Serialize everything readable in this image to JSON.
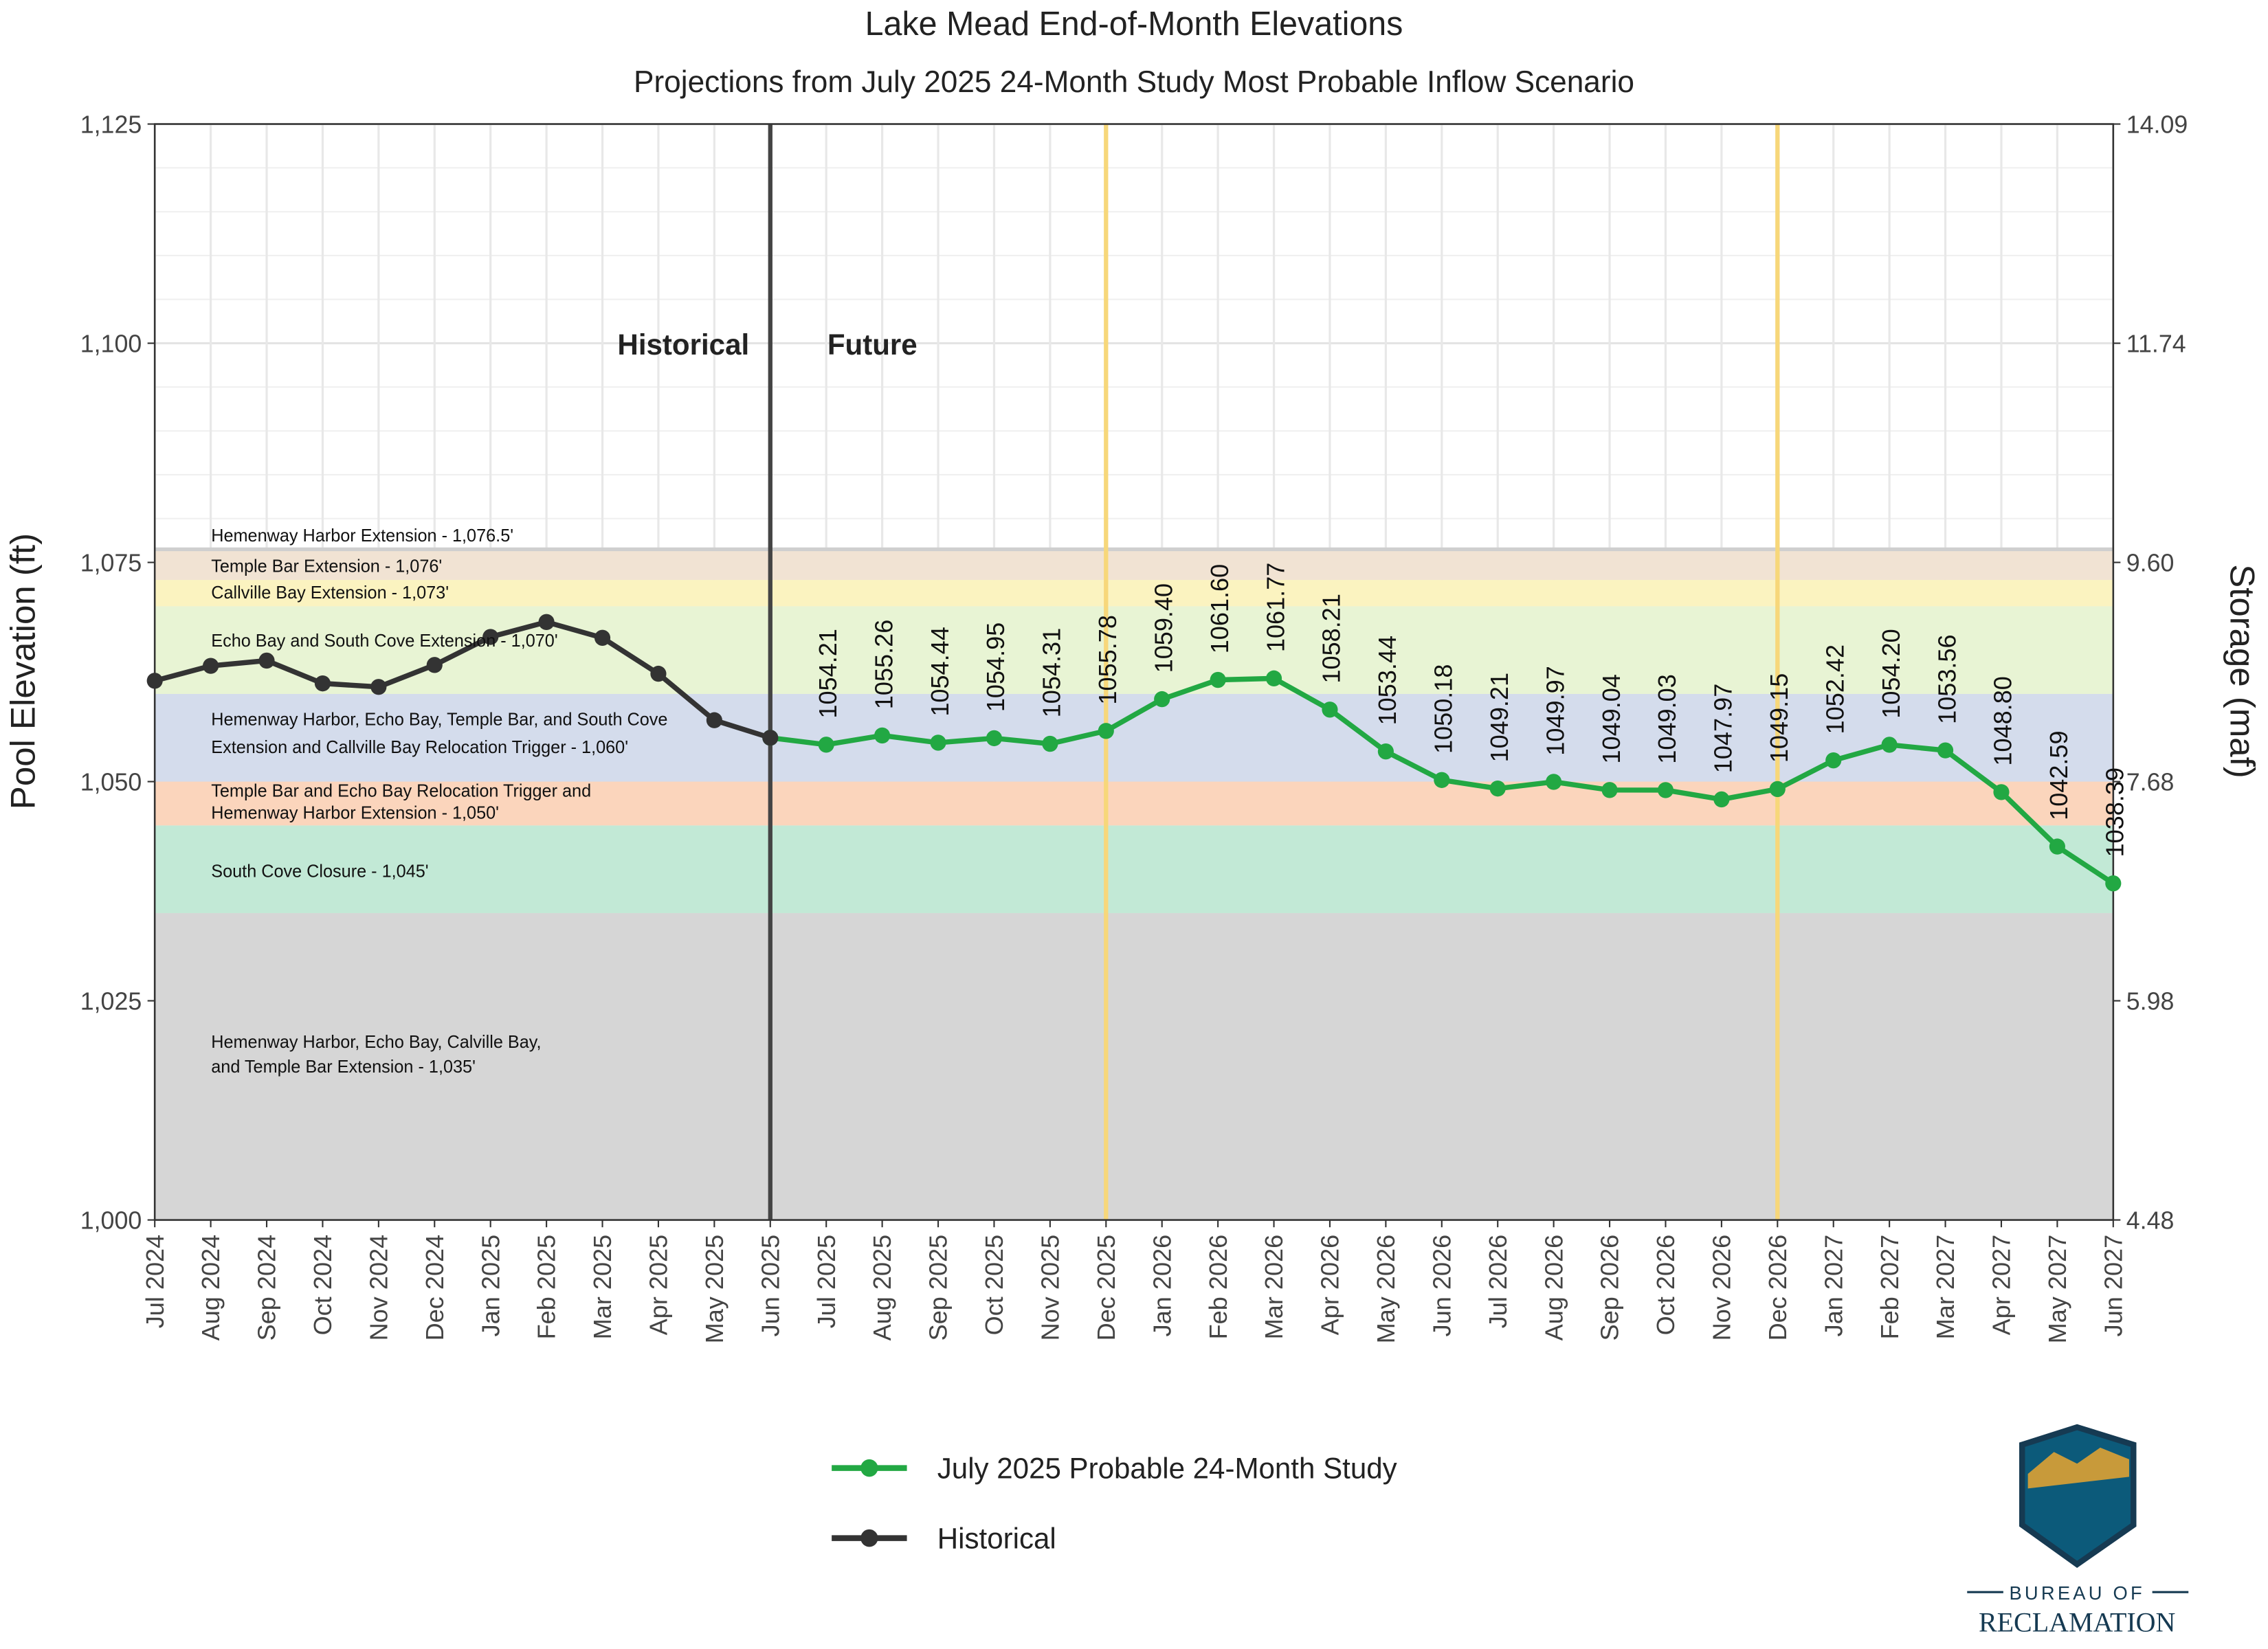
{
  "chart_data": {
    "type": "line",
    "title": "Lake Mead End-of-Month Elevations",
    "subtitle": "Projections from July 2025 24-Month Study Most Probable Inflow Scenario",
    "y_label": "Pool Elevation (ft)",
    "y2_label": "Storage (maf)",
    "categories": [
      "Jul 2024",
      "Aug 2024",
      "Sep 2024",
      "Oct 2024",
      "Nov 2024",
      "Dec 2024",
      "Jan 2025",
      "Feb 2025",
      "Mar 2025",
      "Apr 2025",
      "May 2025",
      "Jun 2025",
      "Jul 2025",
      "Aug 2025",
      "Sep 2025",
      "Oct 2025",
      "Nov 2025",
      "Dec 2025",
      "Jan 2026",
      "Feb 2026",
      "Mar 2026",
      "Apr 2026",
      "May 2026",
      "Jun 2026",
      "Jul 2026",
      "Aug 2026",
      "Sep 2026",
      "Oct 2026",
      "Nov 2026",
      "Dec 2026",
      "Jan 2027",
      "Feb 2027",
      "Mar 2027",
      "Apr 2027",
      "May 2027",
      "Jun 2027"
    ],
    "ylim": [
      1000,
      1125
    ],
    "yticks": [
      {
        "value": 1000,
        "label": "1,000"
      },
      {
        "value": 1025,
        "label": "1,025"
      },
      {
        "value": 1050,
        "label": "1,050"
      },
      {
        "value": 1075,
        "label": "1,075"
      },
      {
        "value": 1100,
        "label": "1,100"
      },
      {
        "value": 1125,
        "label": "1,125"
      }
    ],
    "y2ticks": [
      4.48,
      5.98,
      7.68,
      {
        "value": 9.6,
        "label": "9.60"
      },
      11.74,
      14.09
    ],
    "grid": true,
    "series": [
      {
        "name": "July 2025 Probable 24-Month Study",
        "color": "#22a843",
        "values": [
          null,
          null,
          null,
          null,
          null,
          null,
          null,
          null,
          null,
          null,
          null,
          1055.0,
          1054.21,
          1055.26,
          1054.44,
          1054.95,
          1054.31,
          1055.78,
          1059.4,
          1061.6,
          1061.77,
          1058.21,
          1053.44,
          1050.18,
          1049.21,
          1049.97,
          1049.04,
          1049.03,
          1047.97,
          1049.15,
          1052.42,
          1054.2,
          1053.56,
          1048.8,
          1042.59,
          1038.39
        ],
        "value_labels": [
          null,
          null,
          null,
          null,
          null,
          null,
          null,
          null,
          null,
          null,
          null,
          null,
          "1054.21",
          "1055.26",
          "1054.44",
          "1054.95",
          "1054.31",
          "1055.78",
          "1059.40",
          "1061.60",
          "1061.77",
          "1058.21",
          "1053.44",
          "1050.18",
          "1049.21",
          "1049.97",
          "1049.04",
          "1049.03",
          "1047.97",
          "1049.15",
          "1052.42",
          "1054.20",
          "1053.56",
          "1048.80",
          "1042.59",
          "1038.39"
        ]
      },
      {
        "name": "Historical",
        "color": "#333333",
        "values": [
          1061.5,
          1063.2,
          1063.8,
          1061.2,
          1060.8,
          1063.3,
          1066.5,
          1068.2,
          1066.4,
          1062.3,
          1057.0,
          1055.0,
          null,
          null,
          null,
          null,
          null,
          null,
          null,
          null,
          null,
          null,
          null,
          null,
          null,
          null,
          null,
          null,
          null,
          null,
          null,
          null,
          null,
          null,
          null,
          null
        ]
      }
    ],
    "bands": [
      {
        "from": 1000,
        "to": 1035,
        "color": "#d6d6d6"
      },
      {
        "from": 1035,
        "to": 1045,
        "color": "#c2e9d6"
      },
      {
        "from": 1045,
        "to": 1050,
        "color": "#fbd5bc"
      },
      {
        "from": 1050,
        "to": 1060,
        "color": "#d4dcec"
      },
      {
        "from": 1060,
        "to": 1070,
        "color": "#e8f4d4"
      },
      {
        "from": 1070,
        "to": 1073,
        "color": "#fbf3c0"
      },
      {
        "from": 1073,
        "to": 1076.5,
        "color": "#f1e3d3"
      }
    ],
    "band_labels": [
      "Hemenway Harbor Extension - 1,076.5'",
      "Temple Bar Extension - 1,076'",
      "Callville Bay Extension - 1,073'",
      "Echo Bay and South Cove Extension - 1,070'",
      "Hemenway Harbor, Echo Bay, Temple Bar, and South Cove",
      "Extension and Callville Bay Relocation Trigger - 1,060'",
      "Temple Bar and Echo Bay Relocation Trigger and",
      "Hemenway Harbor Extension - 1,050'",
      "South Cove Closure - 1,045'",
      "Hemenway Harbor, Echo Bay, Calville Bay,",
      "and Temple Bar Extension - 1,035'"
    ],
    "vlines": [
      {
        "x": "Jun 2025",
        "color": "#444444"
      },
      {
        "x": "Dec 2025",
        "color": "#f7d77a"
      },
      {
        "x": "Dec 2026",
        "color": "#f7d77a"
      }
    ],
    "annotations": [
      "Historical",
      "Future"
    ],
    "logo_text": [
      "BUREAU OF",
      "RECLAMATION"
    ]
  }
}
